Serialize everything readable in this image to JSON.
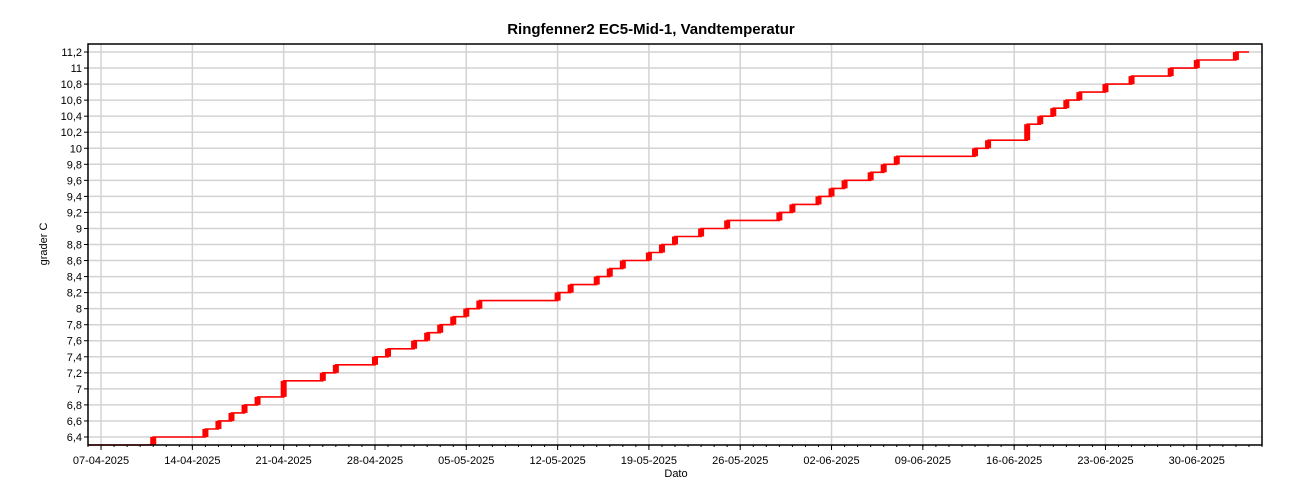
{
  "chart_data": {
    "type": "line",
    "title": "Ringfenner2 EC5-Mid-1, Vandtemperatur",
    "xlabel": "Dato",
    "ylabel": "grader C",
    "grid": true,
    "legend": "none",
    "x_ticks": [
      "07-04-2025",
      "14-04-2025",
      "21-04-2025",
      "28-04-2025",
      "05-05-2025",
      "12-05-2025",
      "19-05-2025",
      "26-05-2025",
      "02-06-2025",
      "09-06-2025",
      "16-06-2025",
      "23-06-2025",
      "30-06-2025"
    ],
    "y_ticks": [
      "6,4",
      "6,6",
      "6,8",
      "7",
      "7,2",
      "7,4",
      "7,6",
      "7,8",
      "8",
      "8,2",
      "8,4",
      "8,6",
      "8,8",
      "9",
      "9,2",
      "9,4",
      "9,6",
      "9,8",
      "10",
      "10,2",
      "10,4",
      "10,6",
      "10,8",
      "11",
      "11,2"
    ],
    "xlim": [
      "2025-04-06",
      "2025-07-05"
    ],
    "ylim": [
      6.3,
      11.3
    ],
    "series": [
      {
        "color": "#ff0000",
        "x": [
          "2025-04-06",
          "2025-04-07",
          "2025-04-08",
          "2025-04-09",
          "2025-04-10",
          "2025-04-11",
          "2025-04-12",
          "2025-04-13",
          "2025-04-14",
          "2025-04-15",
          "2025-04-16",
          "2025-04-17",
          "2025-04-18",
          "2025-04-19",
          "2025-04-20",
          "2025-04-21",
          "2025-04-22",
          "2025-04-23",
          "2025-04-24",
          "2025-04-25",
          "2025-04-26",
          "2025-04-27",
          "2025-04-28",
          "2025-04-29",
          "2025-04-30",
          "2025-05-01",
          "2025-05-02",
          "2025-05-03",
          "2025-05-04",
          "2025-05-05",
          "2025-05-06",
          "2025-05-07",
          "2025-05-08",
          "2025-05-09",
          "2025-05-10",
          "2025-05-11",
          "2025-05-12",
          "2025-05-13",
          "2025-05-14",
          "2025-05-15",
          "2025-05-16",
          "2025-05-17",
          "2025-05-18",
          "2025-05-19",
          "2025-05-20",
          "2025-05-21",
          "2025-05-22",
          "2025-05-23",
          "2025-05-24",
          "2025-05-25",
          "2025-05-26",
          "2025-05-27",
          "2025-05-28",
          "2025-05-29",
          "2025-05-30",
          "2025-05-31",
          "2025-06-01",
          "2025-06-02",
          "2025-06-03",
          "2025-06-04",
          "2025-06-05",
          "2025-06-06",
          "2025-06-07",
          "2025-06-08",
          "2025-06-09",
          "2025-06-10",
          "2025-06-11",
          "2025-06-12",
          "2025-06-13",
          "2025-06-14",
          "2025-06-15",
          "2025-06-16",
          "2025-06-17",
          "2025-06-18",
          "2025-06-19",
          "2025-06-20",
          "2025-06-21",
          "2025-06-22",
          "2025-06-23",
          "2025-06-24",
          "2025-06-25",
          "2025-06-26",
          "2025-06-27",
          "2025-06-28",
          "2025-06-29",
          "2025-06-30",
          "2025-07-01",
          "2025-07-02",
          "2025-07-03",
          "2025-07-04"
        ],
        "y": [
          6.3,
          6.3,
          6.3,
          6.3,
          6.3,
          6.4,
          6.4,
          6.4,
          6.4,
          6.5,
          6.6,
          6.7,
          6.8,
          6.9,
          6.9,
          7.1,
          7.1,
          7.1,
          7.2,
          7.3,
          7.3,
          7.3,
          7.4,
          7.5,
          7.5,
          7.6,
          7.7,
          7.8,
          7.9,
          8.0,
          8.1,
          8.1,
          8.1,
          8.1,
          8.1,
          8.1,
          8.2,
          8.3,
          8.3,
          8.4,
          8.5,
          8.6,
          8.6,
          8.7,
          8.8,
          8.9,
          8.9,
          9.0,
          9.0,
          9.1,
          9.1,
          9.1,
          9.1,
          9.2,
          9.3,
          9.3,
          9.4,
          9.5,
          9.6,
          9.6,
          9.7,
          9.8,
          9.9,
          9.9,
          9.9,
          9.9,
          9.9,
          9.9,
          10.0,
          10.1,
          10.1,
          10.1,
          10.3,
          10.4,
          10.5,
          10.6,
          10.7,
          10.7,
          10.8,
          10.8,
          10.9,
          10.9,
          10.9,
          11.0,
          11.0,
          11.1,
          11.1,
          11.1,
          11.2,
          11.2
        ]
      }
    ]
  }
}
